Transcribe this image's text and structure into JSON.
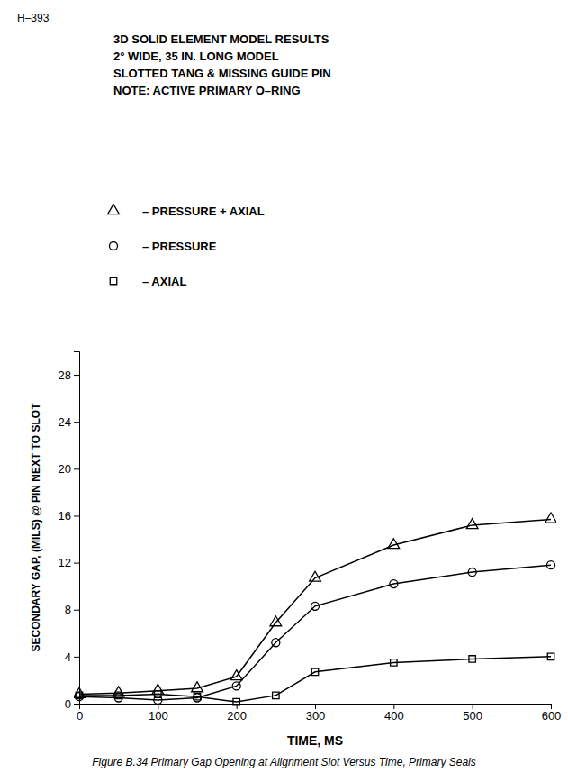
{
  "chart_data": {
    "type": "line",
    "title": [
      "3D SOLID ELEMENT MODEL RESULTS",
      "2° WIDE, 35 IN. LONG MODEL",
      "SLOTTED TANG & MISSING GUIDE PIN",
      "NOTE:  ACTIVE PRIMARY O–RING"
    ],
    "annotations": [
      "H–393",
      "Figure B.34 Primary Gap Opening at Alignment Slot Versus Time, Primary Seals"
    ],
    "xlabel": "TIME, MS",
    "ylabel": "SECONDARY GAP, (MILS) @ PIN NEXT TO SLOT",
    "x": [
      0,
      50,
      100,
      150,
      200,
      250,
      300,
      400,
      500,
      600
    ],
    "series": [
      {
        "name": "– PRESSURE + AXIAL",
        "color": "#000000",
        "marker": "triangle",
        "values": [
          0.8,
          0.9,
          1.1,
          1.3,
          2.3,
          6.9,
          10.7,
          13.5,
          15.2,
          15.7
        ]
      },
      {
        "name": "– PRESSURE",
        "color": "#000000",
        "marker": "circle",
        "values": [
          0.6,
          0.5,
          0.3,
          0.5,
          1.5,
          5.2,
          8.3,
          10.2,
          11.2,
          11.8
        ]
      },
      {
        "name": "– AXIAL",
        "color": "#000000",
        "marker": "square",
        "values": [
          0.7,
          0.7,
          0.8,
          0.6,
          0.15,
          0.7,
          2.7,
          3.5,
          3.8,
          4.0
        ]
      }
    ],
    "xlim": [
      0,
      600
    ],
    "ylim": [
      0,
      30
    ],
    "xticks": [
      0,
      100,
      200,
      300,
      400,
      500,
      600
    ],
    "yticks": [
      0,
      4,
      8,
      12,
      16,
      20,
      24,
      28
    ],
    "grid": false,
    "legend": "top"
  }
}
